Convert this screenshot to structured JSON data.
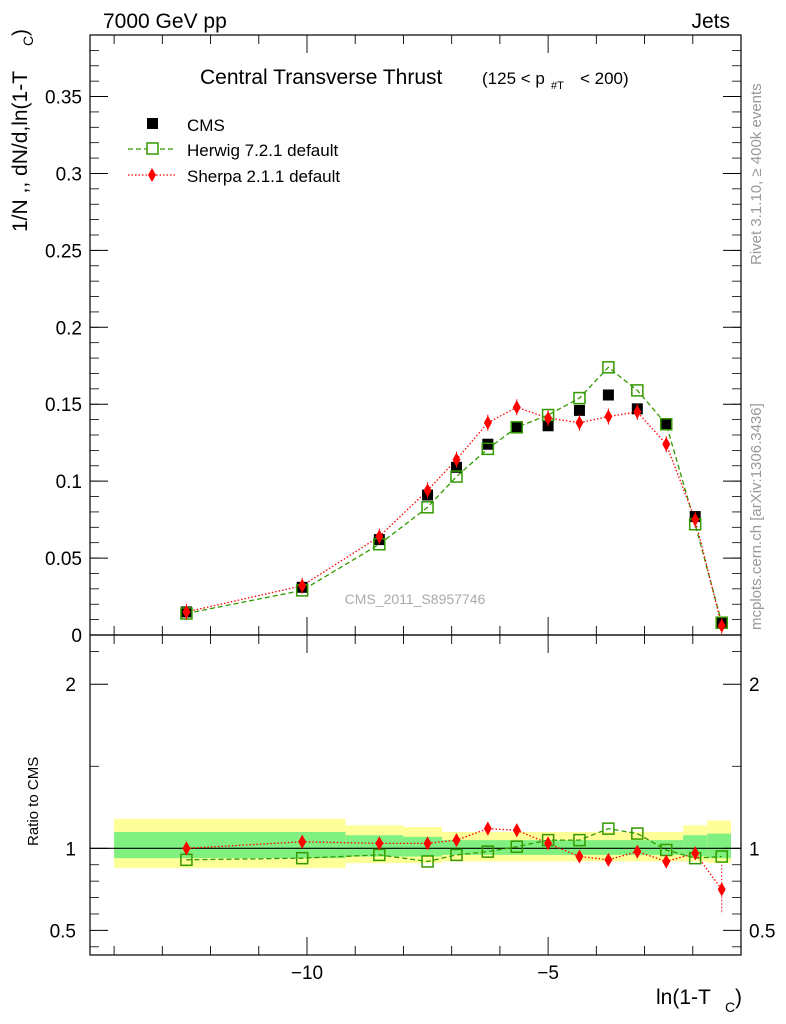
{
  "header": {
    "left": "7000 GeV pp",
    "right": "Jets"
  },
  "side_labels": {
    "rivet": "Rivet 3.1.10, ≥ 400k events",
    "mcplots": "mcplots.cern.ch [arXiv:1306.3436]"
  },
  "colors": {
    "cms": "#000000",
    "herwig": "#339900",
    "sherpa": "#ff0000",
    "band_inner": "#80f080",
    "band_outer": "#ffff99"
  },
  "chart_data": [
    {
      "type": "scatter",
      "title": "Central Transverse Thrust",
      "title_suffix": "(125 < p",
      "title_sub": "#T",
      "title_end": "< 200)",
      "watermark": "CMS_2011_S8957746",
      "ylabel": "1/N ,, dN/d,ln(1-T",
      "ylabel_sub": "C",
      "ylabel_end": ")",
      "xlim": [
        -14.5,
        -1.0
      ],
      "ylim": [
        0,
        0.39
      ],
      "y_ticks": [
        "0",
        "0.05",
        "0.1",
        "0.15",
        "0.2",
        "0.25",
        "0.3",
        "0.35"
      ],
      "y_tick_values": [
        0,
        0.05,
        0.1,
        0.15,
        0.2,
        0.25,
        0.3,
        0.35
      ],
      "legend_position": "top-left",
      "x": [
        -12.5,
        -10.1,
        -8.5,
        -7.5,
        -6.9,
        -6.25,
        -5.65,
        -5.0,
        -4.35,
        -3.75,
        -3.15,
        -2.55,
        -1.95,
        -1.4
      ],
      "series": [
        {
          "name": "CMS",
          "marker": "square-filled",
          "values": [
            0.015,
            0.031,
            0.062,
            0.091,
            0.109,
            0.124,
            0.135,
            0.136,
            0.146,
            0.156,
            0.147,
            0.137,
            0.077,
            0.008
          ]
        },
        {
          "name": "Herwig 7.2.1 default",
          "marker": "square-open",
          "line": "dashed",
          "values": [
            0.014,
            0.029,
            0.059,
            0.083,
            0.103,
            0.121,
            0.135,
            0.143,
            0.154,
            0.174,
            0.159,
            0.137,
            0.072,
            0.008
          ]
        },
        {
          "name": "Sherpa 2.1.1 default",
          "marker": "diamond-filled",
          "line": "dotted",
          "values": [
            0.015,
            0.032,
            0.064,
            0.094,
            0.114,
            0.138,
            0.148,
            0.141,
            0.138,
            0.142,
            0.145,
            0.124,
            0.075,
            0.006
          ]
        }
      ]
    },
    {
      "type": "scatter",
      "ylabel": "Ratio to CMS",
      "xlabel": "ln(1-T",
      "xlabel_sub": "C",
      "xlabel_end": ")",
      "xlim": [
        -14.5,
        -1.0
      ],
      "ylim": [
        0.35,
        2.3
      ],
      "x_ticks": [
        "−10",
        "−5"
      ],
      "x_tick_values": [
        -10,
        -5
      ],
      "y_ticks": [
        "0.5",
        "1",
        "2"
      ],
      "y_tick_values": [
        0.5,
        1,
        2
      ],
      "x": [
        -12.5,
        -10.1,
        -8.5,
        -7.5,
        -6.9,
        -6.25,
        -5.65,
        -5.0,
        -4.35,
        -3.75,
        -3.15,
        -2.55,
        -1.95,
        -1.4
      ],
      "bands": [
        {
          "x0": -14.0,
          "x1": -9.2,
          "outer": [
            0.88,
            1.18
          ],
          "inner": [
            0.94,
            1.1
          ]
        },
        {
          "x0": -9.2,
          "x1": -8.0,
          "outer": [
            0.91,
            1.14
          ],
          "inner": [
            0.95,
            1.08
          ]
        },
        {
          "x0": -8.0,
          "x1": -7.2,
          "outer": [
            0.91,
            1.13
          ],
          "inner": [
            0.95,
            1.07
          ]
        },
        {
          "x0": -7.2,
          "x1": -2.2,
          "outer": [
            0.92,
            1.1
          ],
          "inner": [
            0.96,
            1.05
          ]
        },
        {
          "x0": -2.2,
          "x1": -1.7,
          "outer": [
            0.92,
            1.14
          ],
          "inner": [
            0.95,
            1.08
          ]
        },
        {
          "x0": -1.7,
          "x1": -1.0,
          "outer": [
            0.91,
            1.17
          ],
          "inner": [
            0.94,
            1.09
          ]
        }
      ],
      "series": [
        {
          "name": "Herwig 7.2.1 default",
          "values": [
            0.93,
            0.94,
            0.96,
            0.92,
            0.96,
            0.98,
            1.01,
            1.05,
            1.05,
            1.12,
            1.09,
            0.99,
            0.94,
            0.95
          ]
        },
        {
          "name": "Sherpa 2.1.1 default",
          "values": [
            1.0,
            1.04,
            1.03,
            1.03,
            1.05,
            1.12,
            1.11,
            1.03,
            0.95,
            0.93,
            0.98,
            0.92,
            0.97,
            0.75
          ],
          "errors": [
            0.04,
            0.04,
            0.03,
            0.03,
            0.03,
            0.04,
            0.04,
            0.03,
            0.03,
            0.03,
            0.03,
            0.04,
            0.04,
            0.15
          ]
        }
      ]
    }
  ]
}
